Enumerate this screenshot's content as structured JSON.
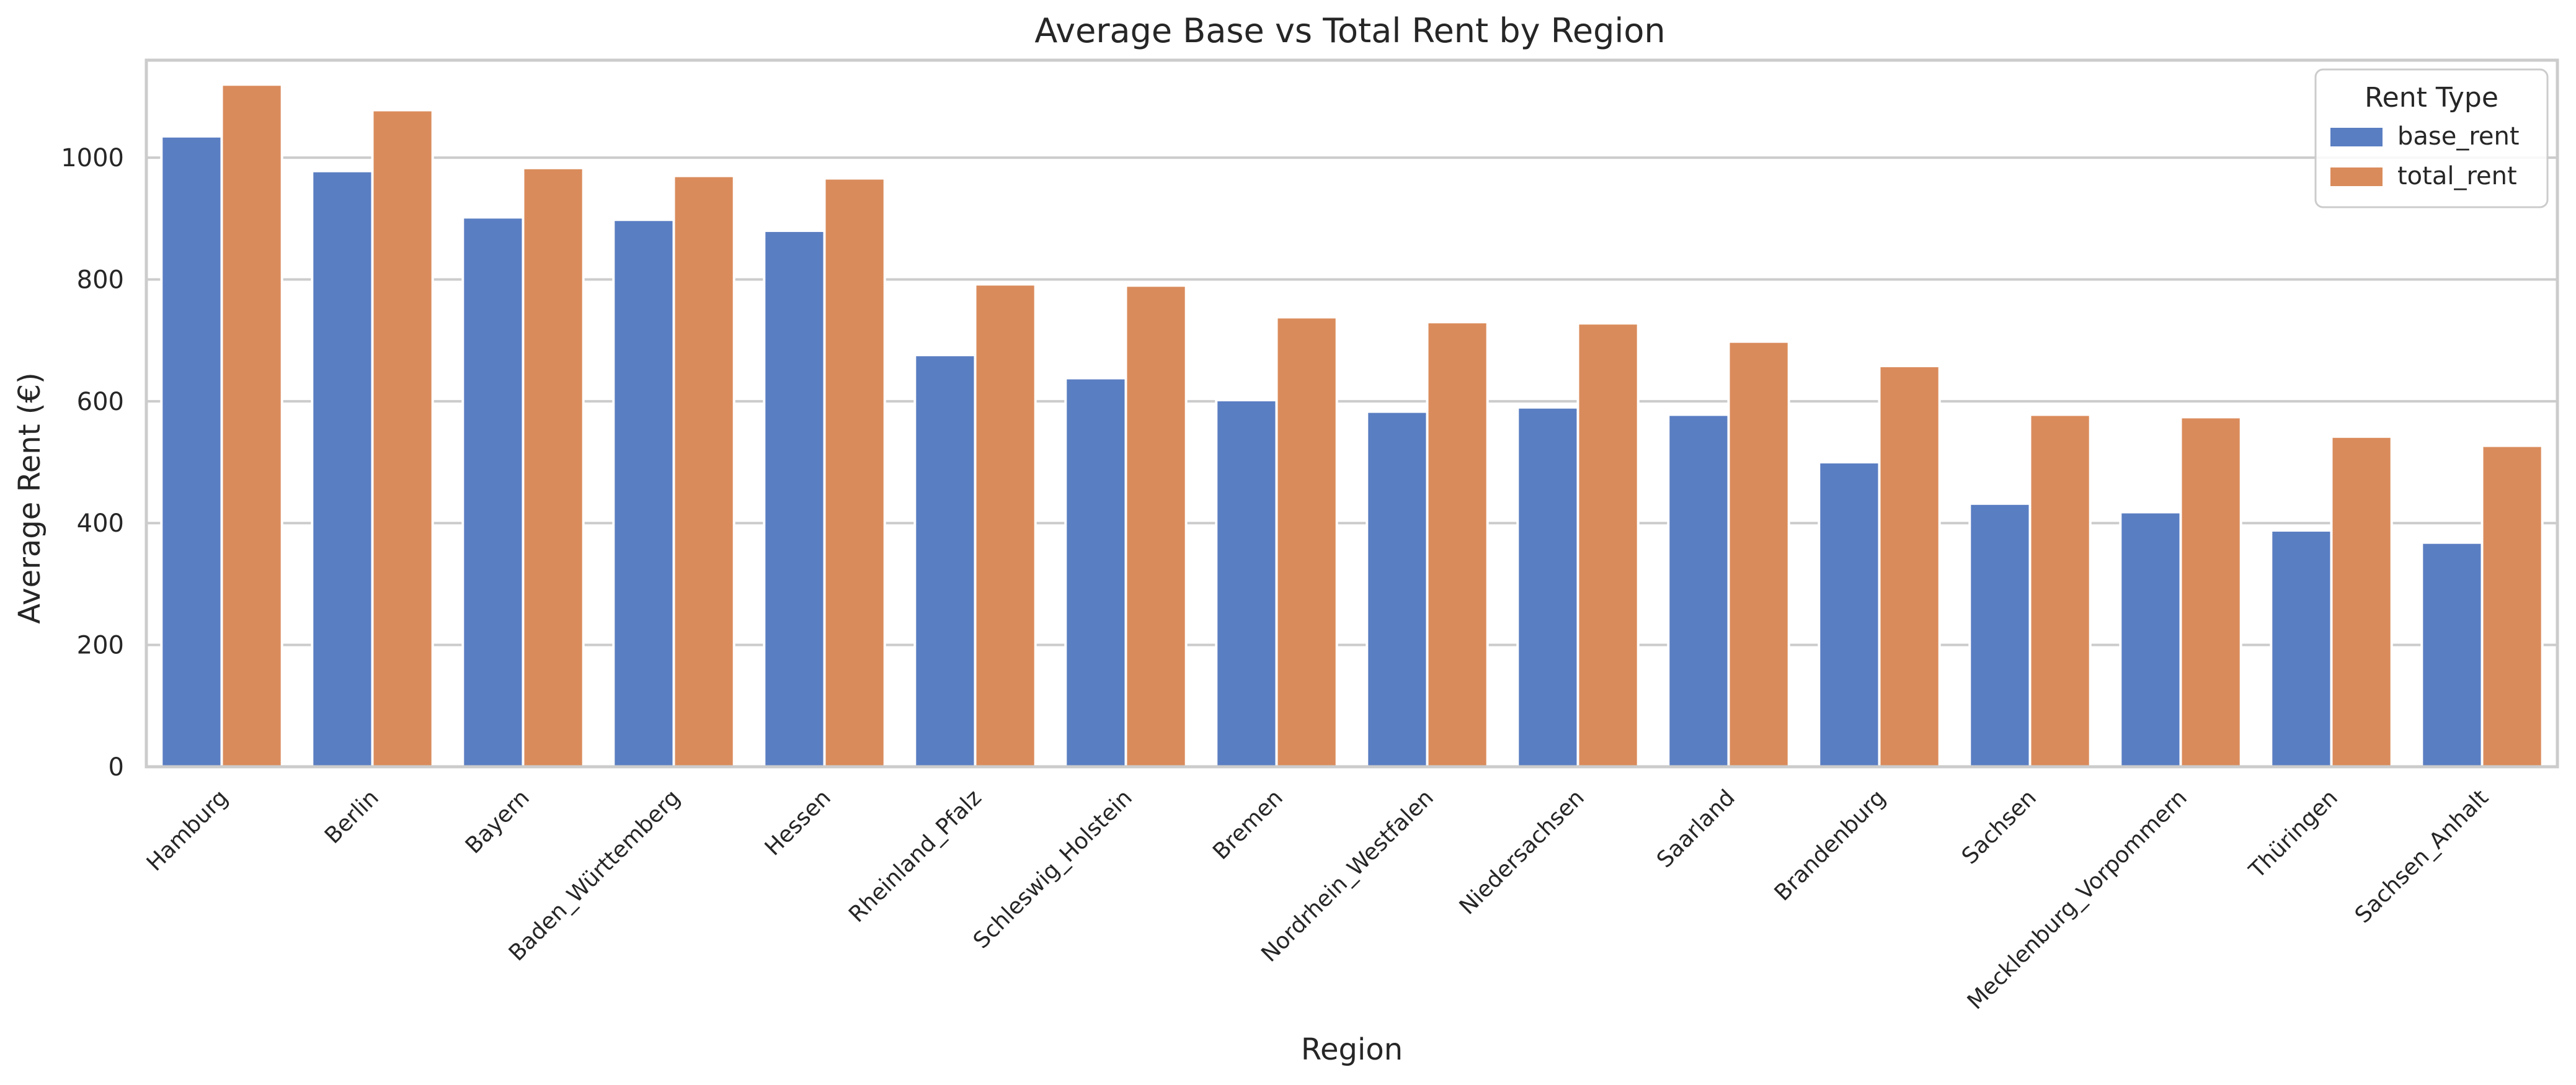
{
  "chart_data": {
    "type": "bar",
    "title": "Average Base vs Total Rent by Region",
    "xlabel": "Region",
    "ylabel": "Average Rent (€)",
    "ylim": [
      0,
      1160
    ],
    "yticks": [
      0,
      200,
      400,
      600,
      800,
      1000
    ],
    "grid": "horizontal",
    "legend": {
      "title": "Rent Type",
      "placement": "top-right"
    },
    "categories": [
      "Hamburg",
      "Berlin",
      "Bayern",
      "Baden_Württemberg",
      "Hessen",
      "Rheinland_Pfalz",
      "Schleswig_Holstein",
      "Bremen",
      "Nordrhein_Westfalen",
      "Niedersachsen",
      "Saarland",
      "Brandenburg",
      "Sachsen",
      "Mecklenburg_Vorpommern",
      "Thüringen",
      "Sachsen_Anhalt"
    ],
    "series": [
      {
        "name": "base_rent",
        "color": "#5a7ec2",
        "values": [
          1035,
          978,
          902,
          898,
          880,
          676,
          638,
          602,
          583,
          590,
          578,
          500,
          432,
          418,
          388,
          368
        ]
      },
      {
        "name": "total_rent",
        "color": "#da8b5b",
        "values": [
          1120,
          1078,
          983,
          970,
          966,
          792,
          790,
          738,
          730,
          728,
          698,
          658,
          578,
          574,
          542,
          527
        ]
      }
    ]
  }
}
